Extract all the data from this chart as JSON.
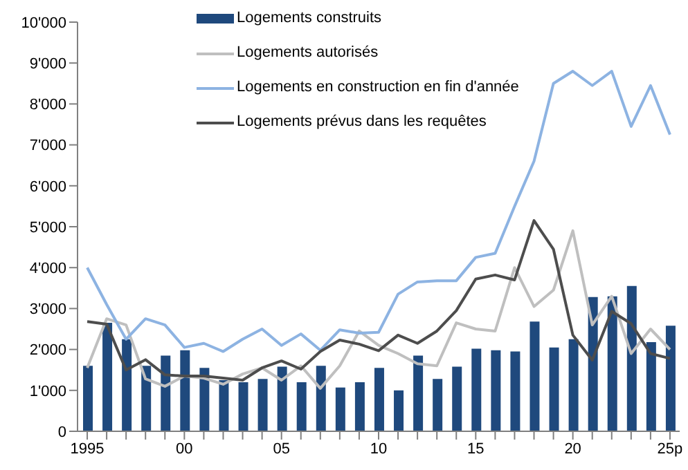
{
  "chart_data": {
    "type": "bar",
    "categories": [
      "1995",
      null,
      null,
      null,
      null,
      "00",
      null,
      null,
      null,
      null,
      "05",
      null,
      null,
      null,
      null,
      "10",
      null,
      null,
      null,
      null,
      "15",
      null,
      null,
      null,
      null,
      "20",
      null,
      null,
      null,
      null,
      "25p"
    ],
    "series": [
      {
        "name": "Logements construits",
        "color": "#1f497d",
        "values": [
          1600,
          2650,
          2250,
          1600,
          1850,
          1980,
          1550,
          1250,
          1200,
          1280,
          1580,
          1200,
          1600,
          1070,
          1200,
          1550,
          1000,
          1850,
          1280,
          1580,
          2020,
          1980,
          1950,
          2680,
          2050,
          2250,
          3280,
          3300,
          3550,
          2180,
          2580
        ]
      },
      {
        "name": "Logements autorisés",
        "type": "line",
        "color": "#bfbfbf",
        "values": [
          1550,
          2750,
          2600,
          1280,
          1100,
          1350,
          1300,
          1150,
          1400,
          1550,
          1250,
          1600,
          1050,
          1600,
          2450,
          2100,
          1900,
          1650,
          1600,
          2650,
          2500,
          2450,
          4000,
          3050,
          3450,
          4900,
          2600,
          3300,
          1900,
          2500,
          2000
        ]
      },
      {
        "name": "Logements en construction en fin d'année",
        "type": "line",
        "color": "#8db3e2",
        "values": [
          4000,
          3100,
          2250,
          2750,
          2600,
          2050,
          2150,
          1950,
          2250,
          2500,
          2100,
          2380,
          1980,
          2480,
          2400,
          2420,
          3350,
          3650,
          3680,
          3680,
          4250,
          4350,
          5500,
          6600,
          8500,
          8800,
          8450,
          8800,
          7450,
          8450,
          7250
        ]
      },
      {
        "name": "Logements prévus dans les requêtes",
        "type": "line",
        "color": "#4d4d4d",
        "values": [
          2680,
          2620,
          1500,
          1750,
          1380,
          1350,
          1350,
          1300,
          1250,
          1550,
          1720,
          1520,
          1950,
          2230,
          2130,
          1970,
          2350,
          2150,
          2450,
          2950,
          3720,
          3820,
          3700,
          5150,
          4450,
          2350,
          1740,
          2930,
          2630,
          1900,
          1780
        ]
      }
    ],
    "ylim": [
      0,
      10000
    ],
    "yticks": [
      0,
      {
        "value": 1000,
        "label": "1'000"
      },
      {
        "value": 2000,
        "label": "2'000"
      },
      {
        "value": 3000,
        "label": "3'000"
      },
      {
        "value": 4000,
        "label": "4'000"
      },
      {
        "value": 5000,
        "label": "5'000"
      },
      {
        "value": 6000,
        "label": "6'000"
      },
      {
        "value": 7000,
        "label": "7'000"
      },
      {
        "value": 8000,
        "label": "8'000"
      },
      {
        "value": 9000,
        "label": "9'000"
      },
      {
        "value": 10000,
        "label": "10'000"
      }
    ],
    "grid": false,
    "legend": "top",
    "marker": "none"
  }
}
